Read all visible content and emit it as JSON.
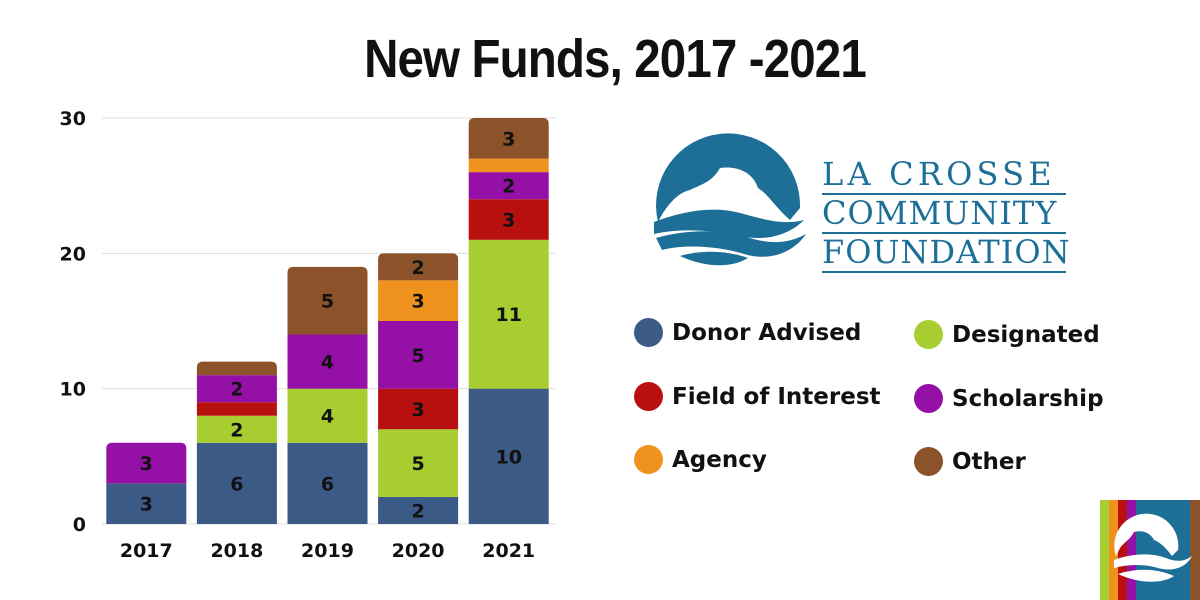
{
  "title": "New Funds, 2017 -2021",
  "org": {
    "line1": "LA CROSSE",
    "line2": "COMMUNITY",
    "line3": "FOUNDATION"
  },
  "logo_icon": "la-crosse-bluff-and-waves-icon",
  "badge_icon": "la-crosse-foundation-badge-icon",
  "chart_data": {
    "type": "bar",
    "stacked": true,
    "categories": [
      "2017",
      "2018",
      "2019",
      "2020",
      "2021"
    ],
    "series": [
      {
        "name": "Donor Advised",
        "color": "#3b5a86",
        "values": [
          3,
          6,
          6,
          2,
          10
        ]
      },
      {
        "name": "Designated",
        "color": "#a8cd30",
        "values": [
          0,
          2,
          4,
          5,
          11
        ]
      },
      {
        "name": "Field of Interest",
        "color": "#b80f0f",
        "values": [
          0,
          1,
          0,
          3,
          3
        ]
      },
      {
        "name": "Scholarship",
        "color": "#9510a6",
        "values": [
          3,
          2,
          4,
          5,
          2
        ]
      },
      {
        "name": "Agency",
        "color": "#f0921e",
        "values": [
          0,
          0,
          0,
          3,
          1
        ]
      },
      {
        "name": "Other",
        "color": "#8c522a",
        "values": [
          0,
          1,
          5,
          2,
          3
        ]
      }
    ],
    "data_labels": [
      [
        "3",
        "",
        "",
        "3",
        "",
        ""
      ],
      [
        "6",
        "2",
        "",
        "2",
        "",
        ""
      ],
      [
        "6",
        "4",
        "",
        "4",
        "",
        "5"
      ],
      [
        "2",
        "5",
        "3",
        "5",
        "3",
        "2"
      ],
      [
        "10",
        "11",
        "3",
        "2",
        "",
        "3"
      ]
    ],
    "ylim": [
      0,
      30
    ],
    "yticks": [
      0,
      10,
      20,
      30
    ],
    "grid": true,
    "legend_position": "right",
    "xlabel": "",
    "ylabel": ""
  }
}
